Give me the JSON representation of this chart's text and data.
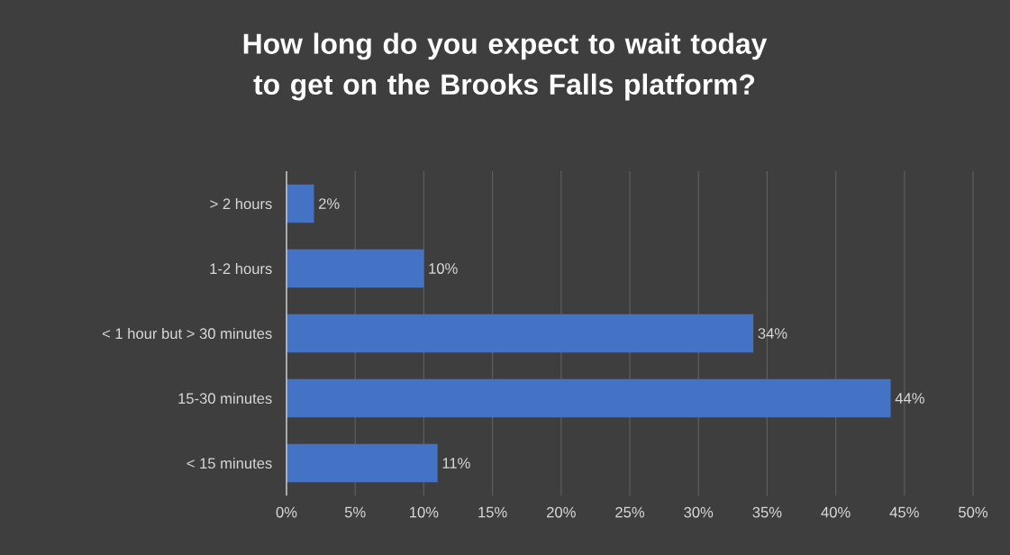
{
  "chart_data": {
    "type": "bar",
    "orientation": "horizontal",
    "title": "How long do you expect to wait today to get on the Brooks Falls platform?",
    "categories": [
      "> 2 hours",
      "1-2 hours",
      "< 1 hour but > 30 minutes",
      "15-30 minutes",
      "< 15 minutes"
    ],
    "values": [
      2,
      10,
      34,
      44,
      11
    ],
    "value_labels": [
      "2%",
      "10%",
      "34%",
      "44%",
      "11%"
    ],
    "color": "#4472c4",
    "xlim": [
      0,
      50
    ],
    "xticks": [
      {
        "value": 0,
        "label": "0%"
      },
      {
        "value": 5,
        "label": "5%"
      },
      {
        "value": 10,
        "label": "10%"
      },
      {
        "value": 15,
        "label": "15%"
      },
      {
        "value": 20,
        "label": "20%"
      },
      {
        "value": 25,
        "label": "25%"
      },
      {
        "value": 30,
        "label": "30%"
      },
      {
        "value": 35,
        "label": "35%"
      },
      {
        "value": 40,
        "label": "40%"
      },
      {
        "value": 45,
        "label": "45%"
      },
      {
        "value": 50,
        "label": "50%"
      }
    ],
    "grid": "x"
  }
}
